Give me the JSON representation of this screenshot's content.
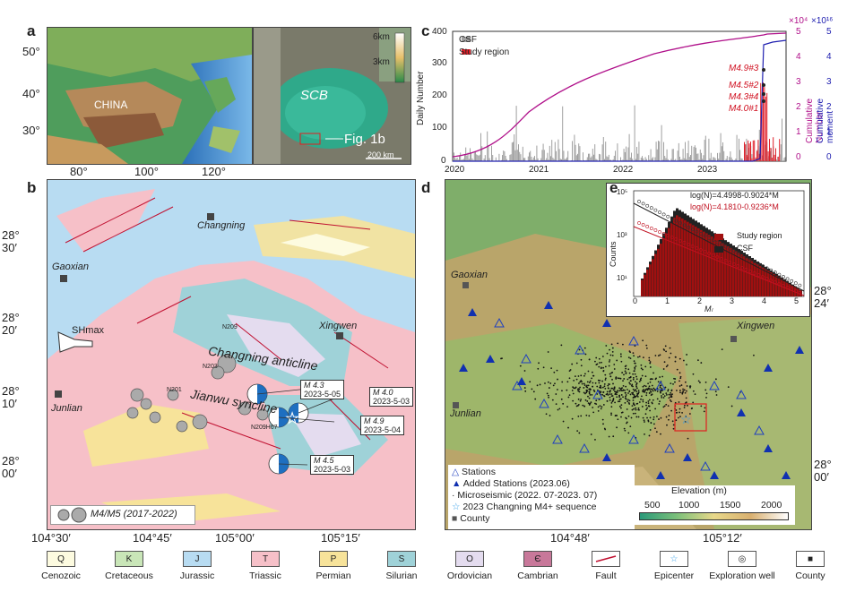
{
  "panel_labels": {
    "a": "a",
    "b": "b",
    "c": "c",
    "d": "d",
    "e": "e"
  },
  "panel_a": {
    "lat_ticks": [
      "50°",
      "40°",
      "30°"
    ],
    "lon_ticks": [
      "80°",
      "100°",
      "120°"
    ],
    "country_label": "CHINA",
    "inset_label": "SCB",
    "figref": "Fig. 1b",
    "scale": "200 km",
    "elev_top": "6km",
    "elev_mid": "3km"
  },
  "panel_b": {
    "towns": [
      "Changning",
      "Gaoxian",
      "Xingwen",
      "Junlian"
    ],
    "stress_label": "SHmax",
    "structures": [
      "Changning anticline",
      "Jianwu syncline"
    ],
    "wells": [
      "N209",
      "N203",
      "N201",
      "N209H67"
    ],
    "events": [
      {
        "mag": "M 4.3",
        "date": "2023-5-05"
      },
      {
        "mag": "M 4.0",
        "date": "2023-5-03"
      },
      {
        "mag": "M 4.9",
        "date": "2023-5-04"
      },
      {
        "mag": "M 4.5",
        "date": "2023-5-03"
      }
    ],
    "legend": "M4/M5 (2017-2022)",
    "lat_ticks": [
      [
        "28°",
        "30′"
      ],
      [
        "28°",
        "20′"
      ],
      [
        "28°",
        "10′"
      ],
      [
        "28°",
        "00′"
      ]
    ],
    "lon_ticks": [
      "104°30′",
      "104°45′",
      "105°00′",
      "105°15′"
    ]
  },
  "panel_c": {
    "y_left_label": "Daily Number",
    "y_left_ticks": [
      "400",
      "300",
      "200",
      "100",
      "0"
    ],
    "y_mid_label": "Cumulative Number",
    "y_mid_ticks": [
      "5",
      "4",
      "3",
      "2",
      "1",
      "0"
    ],
    "y_mid_exp": "×10⁴",
    "y_right_label": "Cumulative moment",
    "y_right_ticks": [
      "5",
      "4",
      "3",
      "2",
      "1",
      "0"
    ],
    "y_right_exp": "×10¹⁶",
    "x_ticks": [
      "2020",
      "2021",
      "2022",
      "2023"
    ],
    "legend": [
      "CSF",
      "Study region"
    ],
    "annotations": [
      "M4.9#3",
      "M4.5#2",
      "M4.3#4",
      "M4.0#1"
    ],
    "colors": {
      "csf": "#a0a0a0",
      "study": "#e0202a",
      "cumnum": "#b0108a",
      "moment": "#2020b0"
    }
  },
  "panel_d": {
    "towns": [
      "Gaoxian",
      "Xingwen",
      "Junlian"
    ],
    "lat_ticks": [
      [
        "28°",
        "24′"
      ],
      [
        "28°",
        "00′"
      ]
    ],
    "lon_ticks": [
      "104°48′",
      "105°12′"
    ],
    "legend": [
      "Stations",
      "Added Stations (2023.06)",
      "Microseismic (2022. 07-2023. 07)",
      "2023 Changning M4+ sequence",
      "County"
    ],
    "elev_title": "Elevation (m)",
    "elev_ticks": [
      "500",
      "1000",
      "1500",
      "2000"
    ]
  },
  "panel_e": {
    "eq1": "log(N)=4.4998-0.9024*M",
    "eq2": "log(N)=4.1810-0.9236*M",
    "ylabel": "Counts",
    "xlabel": "Mₗ",
    "x_ticks": [
      "0",
      "1",
      "2",
      "3",
      "4",
      "5"
    ],
    "y_ticks": [
      "10⁵",
      "10³",
      "10¹"
    ],
    "legend": [
      "Study region",
      "CSF"
    ]
  },
  "bottom_legend": [
    {
      "code": "Q",
      "label": "Cenozoic",
      "color": "#fdfbe0"
    },
    {
      "code": "K",
      "label": "Cretaceous",
      "color": "#c9e6b8"
    },
    {
      "code": "J",
      "label": "Jurassic",
      "color": "#b8dcf2"
    },
    {
      "code": "T",
      "label": "Triassic",
      "color": "#f6c0c8"
    },
    {
      "code": "P",
      "label": "Permian",
      "color": "#f7e39a"
    },
    {
      "code": "S",
      "label": "Silurian",
      "color": "#9fd2d8"
    },
    {
      "code": "O",
      "label": "Ordovician",
      "color": "#e4dcef"
    },
    {
      "code": "Є",
      "label": "Cambrian",
      "color": "#c8789a"
    },
    {
      "code": "",
      "label": "Fault",
      "color": "#ffffff"
    },
    {
      "code": "☆",
      "label": "Epicenter",
      "color": "#ffffff"
    },
    {
      "code": "◎",
      "label": "Exploration well",
      "color": "#ffffff"
    },
    {
      "code": "■",
      "label": "County",
      "color": "#ffffff"
    }
  ]
}
